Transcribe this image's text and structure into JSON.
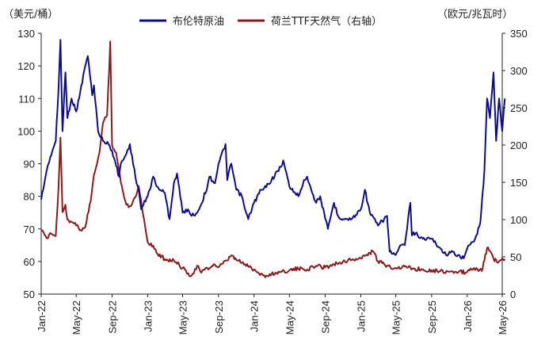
{
  "chart_data": {
    "type": "line",
    "left_unit_label": "（美元/桶）",
    "right_unit_label": "（欧元/兆瓦时）",
    "y_left": {
      "min": 50,
      "max": 130,
      "ticks": [
        50,
        60,
        70,
        80,
        90,
        100,
        110,
        120,
        130
      ]
    },
    "y_right": {
      "min": 0,
      "max": 350,
      "ticks": [
        0,
        50,
        100,
        150,
        200,
        250,
        300,
        350
      ]
    },
    "x_range": [
      "2022-01",
      "2026-05"
    ],
    "x_tick_labels": [
      "Jan-22",
      "May-22",
      "Sep-22",
      "Jan-23",
      "May-23",
      "Sep-23",
      "Jan-24",
      "May-24",
      "Sep-24",
      "Jan-25",
      "May-25",
      "Sep-25",
      "Jan-26",
      "May-26"
    ],
    "x_tick_dates": [
      "2022-01",
      "2022-05",
      "2022-09",
      "2023-01",
      "2023-05",
      "2023-09",
      "2024-01",
      "2024-05",
      "2024-09",
      "2025-01",
      "2025-05",
      "2025-09",
      "2026-01",
      "2026-05"
    ],
    "legend_position": "top",
    "grid": false,
    "series": [
      {
        "name": "布伦特原油",
        "axis": "left",
        "color": "#0d0d8c",
        "points": [
          [
            "2022-01",
            79
          ],
          [
            "2022-01-20",
            88
          ],
          [
            "2022-02",
            92
          ],
          [
            "2022-02-20",
            97
          ],
          [
            "2022-03",
            112
          ],
          [
            "2022-03-08",
            128
          ],
          [
            "2022-03-15",
            100
          ],
          [
            "2022-03-25",
            118
          ],
          [
            "2022-04",
            104
          ],
          [
            "2022-04-15",
            110
          ],
          [
            "2022-05",
            106
          ],
          [
            "2022-05-15",
            112
          ],
          [
            "2022-06",
            120
          ],
          [
            "2022-06-10",
            123
          ],
          [
            "2022-06-25",
            111
          ],
          [
            "2022-07",
            114
          ],
          [
            "2022-07-15",
            100
          ],
          [
            "2022-08",
            97
          ],
          [
            "2022-08-20",
            96
          ],
          [
            "2022-09",
            94
          ],
          [
            "2022-09-25",
            86
          ],
          [
            "2022-10",
            90
          ],
          [
            "2022-10-20",
            93
          ],
          [
            "2022-11",
            96
          ],
          [
            "2022-11-20",
            86
          ],
          [
            "2022-12",
            82
          ],
          [
            "2022-12-10",
            76
          ],
          [
            "2023-01",
            80
          ],
          [
            "2023-01-20",
            86
          ],
          [
            "2023-02",
            83
          ],
          [
            "2023-03",
            81
          ],
          [
            "2023-03-17",
            73
          ],
          [
            "2023-04",
            84
          ],
          [
            "2023-04-12",
            87
          ],
          [
            "2023-05",
            75
          ],
          [
            "2023-05-20",
            76
          ],
          [
            "2023-06",
            74
          ],
          [
            "2023-06-20",
            75
          ],
          [
            "2023-07",
            77
          ],
          [
            "2023-07-25",
            83
          ],
          [
            "2023-08",
            86
          ],
          [
            "2023-08-20",
            84
          ],
          [
            "2023-09",
            90
          ],
          [
            "2023-09-25",
            96
          ],
          [
            "2023-10",
            85
          ],
          [
            "2023-10-15",
            90
          ],
          [
            "2023-11",
            82
          ],
          [
            "2023-11-20",
            80
          ],
          [
            "2023-12",
            76
          ],
          [
            "2023-12-12",
            73
          ],
          [
            "2024-01",
            78
          ],
          [
            "2024-01-25",
            82
          ],
          [
            "2024-02",
            82
          ],
          [
            "2024-03",
            85
          ],
          [
            "2024-04",
            89
          ],
          [
            "2024-04-10",
            91
          ],
          [
            "2024-05",
            83
          ],
          [
            "2024-06",
            80
          ],
          [
            "2024-06-20",
            85
          ],
          [
            "2024-07",
            86
          ],
          [
            "2024-07-15",
            82
          ],
          [
            "2024-08",
            78
          ],
          [
            "2024-08-15",
            80
          ],
          [
            "2024-09",
            73
          ],
          [
            "2024-09-10",
            70
          ],
          [
            "2024-10",
            78
          ],
          [
            "2024-10-15",
            74
          ],
          [
            "2024-11",
            73
          ],
          [
            "2024-12",
            73
          ],
          [
            "2025-01",
            76
          ],
          [
            "2025-01-15",
            82
          ],
          [
            "2025-02",
            75
          ],
          [
            "2025-03",
            71
          ],
          [
            "2025-04",
            74
          ],
          [
            "2025-04-10",
            63
          ],
          [
            "2025-05",
            62
          ],
          [
            "2025-05-20",
            65
          ],
          [
            "2025-06",
            65
          ],
          [
            "2025-06-20",
            78
          ],
          [
            "2025-06-25",
            68
          ],
          [
            "2025-07",
            69
          ],
          [
            "2025-08",
            67
          ],
          [
            "2025-09",
            67
          ],
          [
            "2025-10",
            64
          ],
          [
            "2025-10-20",
            62
          ],
          [
            "2025-11",
            63
          ],
          [
            "2025-12",
            62
          ],
          [
            "2025-12-20",
            61
          ],
          [
            "2026-01",
            64
          ],
          [
            "2026-01-20",
            66
          ],
          [
            "2026-02",
            68
          ],
          [
            "2026-02-15",
            72
          ],
          [
            "2026-03",
            88
          ],
          [
            "2026-03-10",
            110
          ],
          [
            "2026-03-20",
            104
          ],
          [
            "2026-04",
            118
          ],
          [
            "2026-04-10",
            97
          ],
          [
            "2026-04-20",
            110
          ],
          [
            "2026-05",
            100
          ],
          [
            "2026-05-10",
            110
          ]
        ]
      },
      {
        "name": "荷兰TTF天然气（右轴）",
        "axis": "right",
        "color": "#8b1a1a",
        "points": [
          [
            "2022-01",
            85
          ],
          [
            "2022-01-20",
            75
          ],
          [
            "2022-02",
            82
          ],
          [
            "2022-02-20",
            78
          ],
          [
            "2022-03",
            140
          ],
          [
            "2022-03-08",
            210
          ],
          [
            "2022-03-15",
            110
          ],
          [
            "2022-03-25",
            120
          ],
          [
            "2022-04",
            100
          ],
          [
            "2022-04-20",
            96
          ],
          [
            "2022-05",
            92
          ],
          [
            "2022-05-20",
            85
          ],
          [
            "2022-06",
            90
          ],
          [
            "2022-06-20",
            125
          ],
          [
            "2022-07",
            160
          ],
          [
            "2022-07-20",
            190
          ],
          [
            "2022-08",
            230
          ],
          [
            "2022-08-15",
            240
          ],
          [
            "2022-08-26",
            339
          ],
          [
            "2022-09",
            200
          ],
          [
            "2022-09-15",
            190
          ],
          [
            "2022-10",
            150
          ],
          [
            "2022-10-20",
            120
          ],
          [
            "2022-11",
            118
          ],
          [
            "2022-11-20",
            130
          ],
          [
            "2022-12",
            145
          ],
          [
            "2022-12-20",
            100
          ],
          [
            "2023-01",
            70
          ],
          [
            "2023-01-20",
            65
          ],
          [
            "2023-02",
            55
          ],
          [
            "2023-03",
            47
          ],
          [
            "2023-04",
            45
          ],
          [
            "2023-05",
            35
          ],
          [
            "2023-05-20",
            28
          ],
          [
            "2023-06",
            25
          ],
          [
            "2023-06-20",
            38
          ],
          [
            "2023-07",
            30
          ],
          [
            "2023-08",
            35
          ],
          [
            "2023-08-15",
            40
          ],
          [
            "2023-09",
            36
          ],
          [
            "2023-10",
            45
          ],
          [
            "2023-10-15",
            52
          ],
          [
            "2023-11",
            46
          ],
          [
            "2023-12",
            40
          ],
          [
            "2024-01",
            33
          ],
          [
            "2024-02",
            25
          ],
          [
            "2024-02-20",
            24
          ],
          [
            "2024-03",
            27
          ],
          [
            "2024-04",
            30
          ],
          [
            "2024-05",
            32
          ],
          [
            "2024-06",
            34
          ],
          [
            "2024-07",
            33
          ],
          [
            "2024-08",
            38
          ],
          [
            "2024-09",
            36
          ],
          [
            "2024-10",
            40
          ],
          [
            "2024-11",
            44
          ],
          [
            "2024-12",
            46
          ],
          [
            "2025-01",
            48
          ],
          [
            "2025-02",
            55
          ],
          [
            "2025-02-10",
            58
          ],
          [
            "2025-03",
            44
          ],
          [
            "2025-04",
            38
          ],
          [
            "2025-05",
            35
          ],
          [
            "2025-06",
            37
          ],
          [
            "2025-07",
            34
          ],
          [
            "2025-08",
            33
          ],
          [
            "2025-09",
            32
          ],
          [
            "2025-10",
            31
          ],
          [
            "2025-11",
            30
          ],
          [
            "2025-12",
            29
          ],
          [
            "2026-01",
            30
          ],
          [
            "2026-01-20",
            33
          ],
          [
            "2026-02",
            35
          ],
          [
            "2026-02-20",
            31
          ],
          [
            "2026-03",
            45
          ],
          [
            "2026-03-10",
            62
          ],
          [
            "2026-03-20",
            58
          ],
          [
            "2026-04",
            48
          ],
          [
            "2026-04-15",
            42
          ],
          [
            "2026-05",
            48
          ],
          [
            "2026-05-10",
            47
          ]
        ]
      }
    ]
  }
}
